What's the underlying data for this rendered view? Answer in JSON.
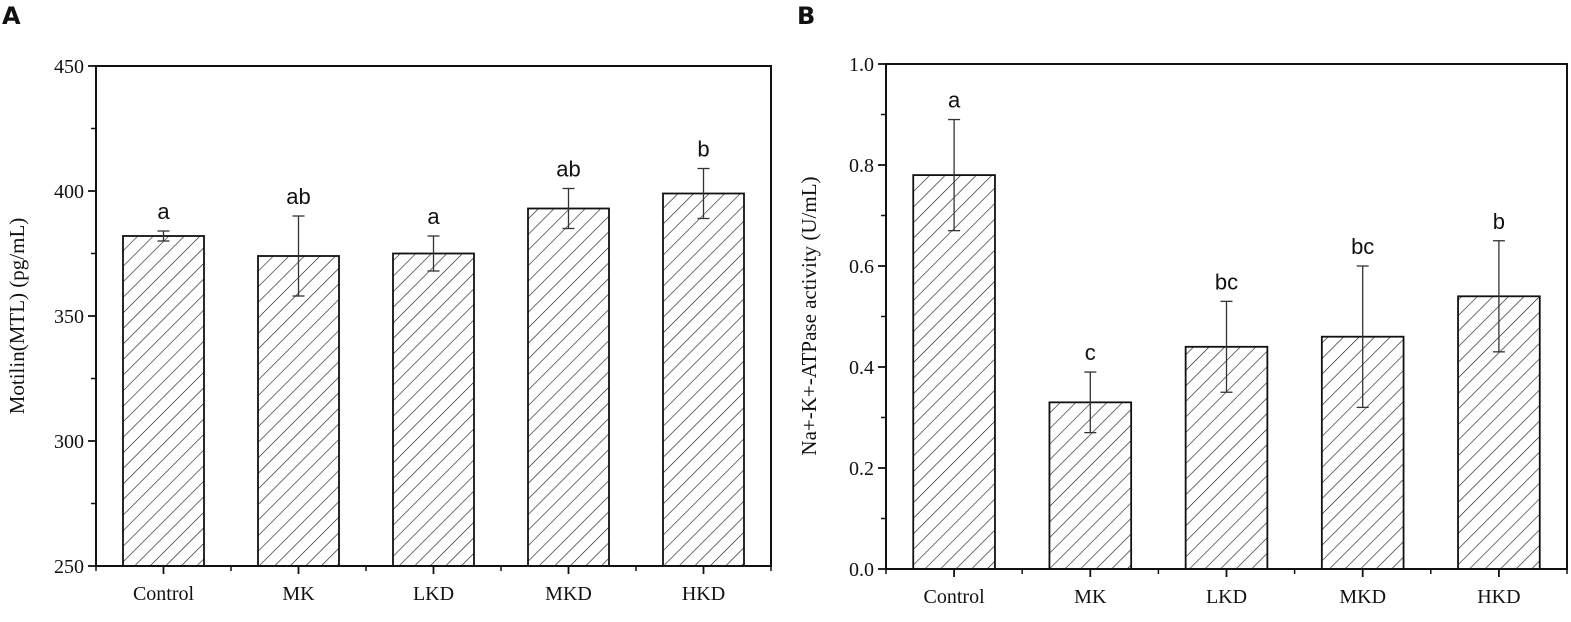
{
  "chart_data": [
    {
      "panel": "A",
      "type": "bar",
      "categories": [
        "Control",
        "MK",
        "LKD",
        "MKD",
        "HKD"
      ],
      "values": [
        382,
        374,
        375,
        393,
        399
      ],
      "errors": [
        2,
        16,
        7,
        8,
        10
      ],
      "significance": [
        "a",
        "ab",
        "a",
        "ab",
        "b"
      ],
      "xlabel": "",
      "ylabel": "Motilin(MTL) (pg/mL)",
      "ylim": [
        250,
        450
      ],
      "yticks": [
        250,
        300,
        350,
        400,
        450
      ],
      "ytick_labels": [
        "250",
        "300",
        "350",
        "400",
        "450"
      ],
      "yminor_step": 25,
      "pattern": "diagonal-hatch",
      "grid": false
    },
    {
      "panel": "B",
      "type": "bar",
      "categories": [
        "Control",
        "MK",
        "LKD",
        "MKD",
        "HKD"
      ],
      "values": [
        0.78,
        0.33,
        0.44,
        0.46,
        0.54
      ],
      "errors": [
        0.11,
        0.06,
        0.09,
        0.14,
        0.11
      ],
      "significance": [
        "a",
        "c",
        "bc",
        "bc",
        "b"
      ],
      "xlabel": "",
      "ylabel": "Na+-K+-ATPase activity (U/mL)",
      "ylim": [
        0.0,
        1.0
      ],
      "yticks": [
        0.0,
        0.2,
        0.4,
        0.6,
        0.8,
        1.0
      ],
      "ytick_labels": [
        "0.0",
        "0.2",
        "0.4",
        "0.6",
        "0.8",
        "1.0"
      ],
      "yminor_step": 0.1,
      "pattern": "diagonal-hatch",
      "grid": false
    }
  ],
  "colors": {
    "ink": "#111111",
    "background": "#ffffff"
  }
}
